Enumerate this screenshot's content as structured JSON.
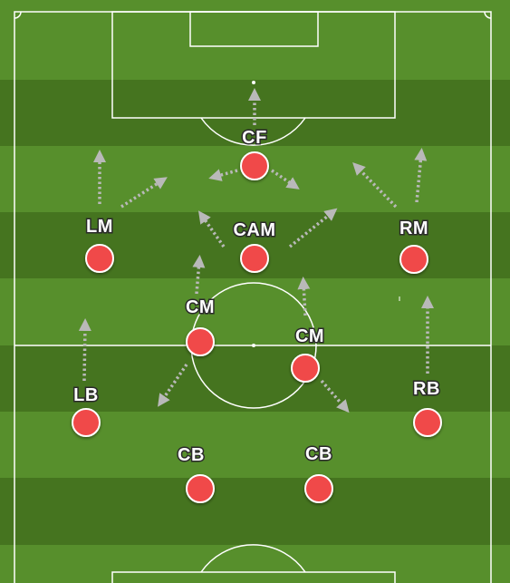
{
  "colors": {
    "grass_light": "#578f2c",
    "grass_dark": "#45741f",
    "lines": "#ffffff",
    "player": "#f04848",
    "player_outline": "#ffffff",
    "arrow": "#b9b9b9"
  },
  "players": [
    {
      "id": "cf",
      "label": "CF"
    },
    {
      "id": "lm",
      "label": "LM"
    },
    {
      "id": "cam",
      "label": "CAM"
    },
    {
      "id": "rm",
      "label": "RM"
    },
    {
      "id": "cm-left",
      "label": "CM"
    },
    {
      "id": "cm-right",
      "label": "CM"
    },
    {
      "id": "lb",
      "label": "LB"
    },
    {
      "id": "rb",
      "label": "RB"
    },
    {
      "id": "cb-left",
      "label": "CB"
    },
    {
      "id": "cb-right",
      "label": "CB"
    }
  ]
}
